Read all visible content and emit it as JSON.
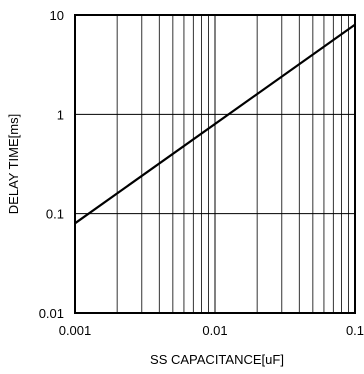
{
  "chart_data": {
    "type": "line",
    "title": "",
    "xlabel": "SS CAPACITANCE[uF]",
    "ylabel": "DELAY TIME[ms]",
    "x_scale": "log",
    "y_scale": "log",
    "xlim": [
      0.001,
      0.1
    ],
    "ylim": [
      0.01,
      10
    ],
    "x_ticks": [
      {
        "value": 0.001,
        "label": "0.001"
      },
      {
        "value": 0.01,
        "label": "0.01"
      },
      {
        "value": 0.1,
        "label": "0.1"
      }
    ],
    "y_ticks": [
      {
        "value": 10,
        "label": "10"
      },
      {
        "value": 1,
        "label": "1"
      },
      {
        "value": 0.1,
        "label": "0.1"
      },
      {
        "value": 0.01,
        "label": "0.01"
      }
    ],
    "grid": true,
    "series": [
      {
        "x": [
          0.001,
          0.1
        ],
        "y": [
          0.08,
          8
        ],
        "color": "#000000"
      }
    ]
  }
}
